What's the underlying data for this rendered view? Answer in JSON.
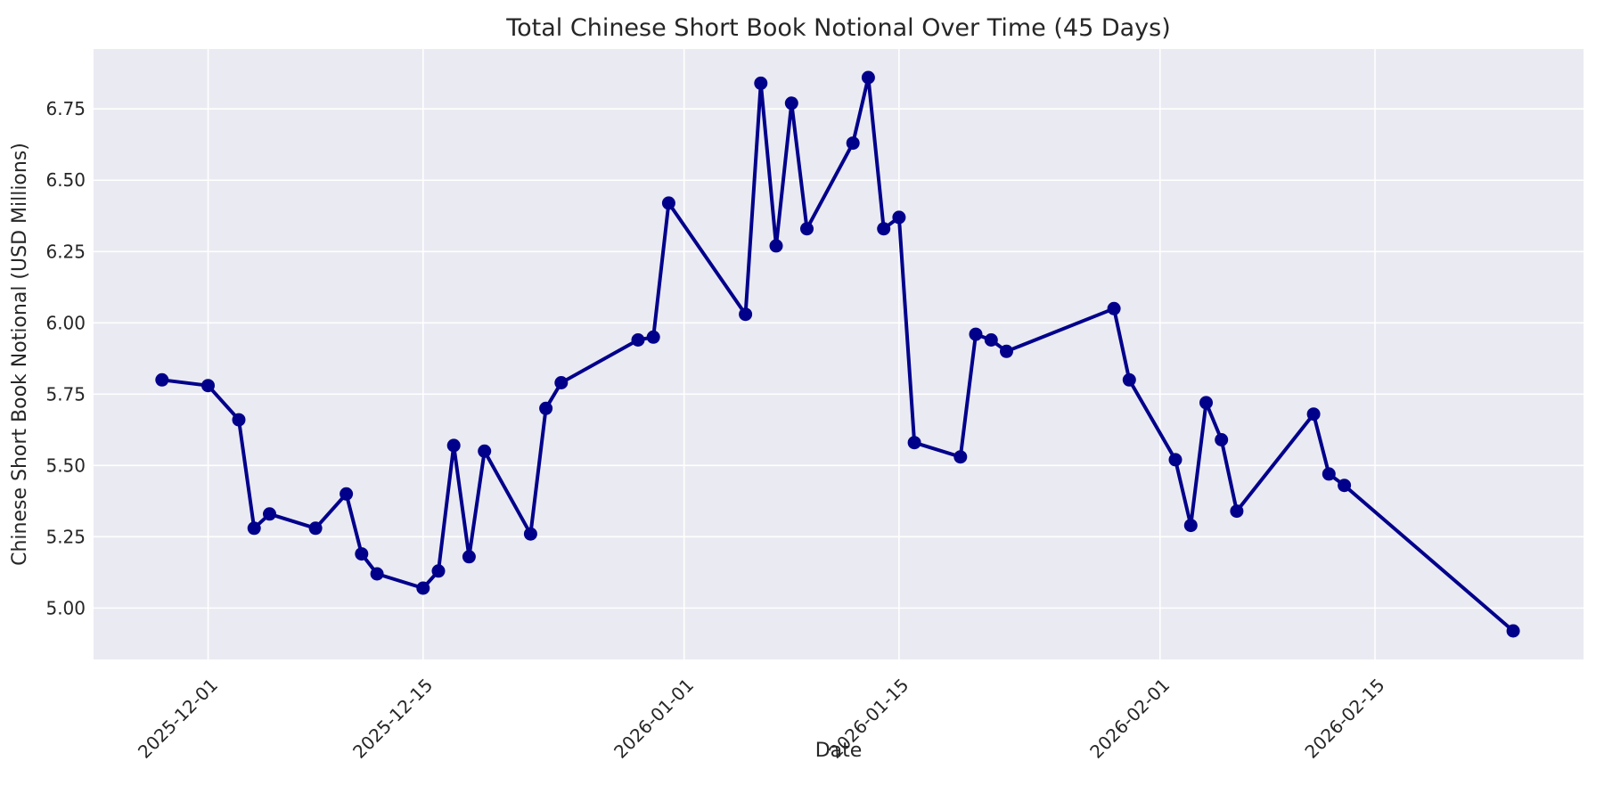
{
  "figure": {
    "title": "Total Chinese Short Book Notional Over Time (45 Days)",
    "xlabel": "Date",
    "ylabel": "Chinese Short Book Notional (USD Millions)"
  },
  "colors": {
    "plot_background": "#EAEAF2",
    "grid": "#FFFFFF",
    "line": "#00008B",
    "marker": "#00008B",
    "text": "#262626"
  },
  "chart_data": {
    "type": "line",
    "title": "Total Chinese Short Book Notional Over Time (45 Days)",
    "xlabel": "Date",
    "ylabel": "Chinese Short Book Notional (USD Millions)",
    "legend": "none",
    "grid": "on",
    "marker": "circle",
    "x": [
      "2025-11-28",
      "2025-12-01",
      "2025-12-03",
      "2025-12-04",
      "2025-12-05",
      "2025-12-08",
      "2025-12-10",
      "2025-12-11",
      "2025-12-12",
      "2025-12-15",
      "2025-12-16",
      "2025-12-17",
      "2025-12-18",
      "2025-12-19",
      "2025-12-22",
      "2025-12-23",
      "2025-12-24",
      "2025-12-29",
      "2025-12-30",
      "2025-12-31",
      "2026-01-05",
      "2026-01-06",
      "2026-01-07",
      "2026-01-08",
      "2026-01-09",
      "2026-01-12",
      "2026-01-13",
      "2026-01-14",
      "2026-01-15",
      "2026-01-16",
      "2026-01-19",
      "2026-01-20",
      "2026-01-21",
      "2026-01-22",
      "2026-01-29",
      "2026-01-30",
      "2026-02-02",
      "2026-02-03",
      "2026-02-04",
      "2026-02-05",
      "2026-02-06",
      "2026-02-11",
      "2026-02-12",
      "2026-02-13",
      "2026-02-24"
    ],
    "values": [
      5.8,
      5.78,
      5.66,
      5.28,
      5.33,
      5.28,
      5.4,
      5.19,
      5.12,
      5.07,
      5.13,
      5.57,
      5.18,
      5.55,
      5.26,
      5.7,
      5.79,
      5.94,
      5.95,
      6.42,
      6.03,
      6.84,
      6.27,
      6.77,
      6.33,
      6.63,
      6.86,
      6.33,
      6.37,
      5.58,
      5.53,
      5.96,
      5.94,
      5.9,
      6.05,
      5.8,
      5.52,
      5.29,
      5.72,
      5.59,
      5.34,
      5.68,
      5.47,
      5.43,
      4.92
    ],
    "xticks": [
      "2025-12-01",
      "2025-12-15",
      "2026-01-01",
      "2026-01-15",
      "2026-02-01",
      "2026-02-15"
    ],
    "yticks": [
      5.0,
      5.25,
      5.5,
      5.75,
      6.0,
      6.25,
      6.5,
      6.75
    ],
    "ytick_labels": [
      "5.00",
      "5.25",
      "5.50",
      "5.75",
      "6.00",
      "6.25",
      "6.50",
      "6.75"
    ],
    "ylim": [
      4.82,
      6.96
    ],
    "xlim_days_from_2025_12_01": [
      -7.46,
      89.58
    ],
    "xtick_rotation_deg": 45
  }
}
